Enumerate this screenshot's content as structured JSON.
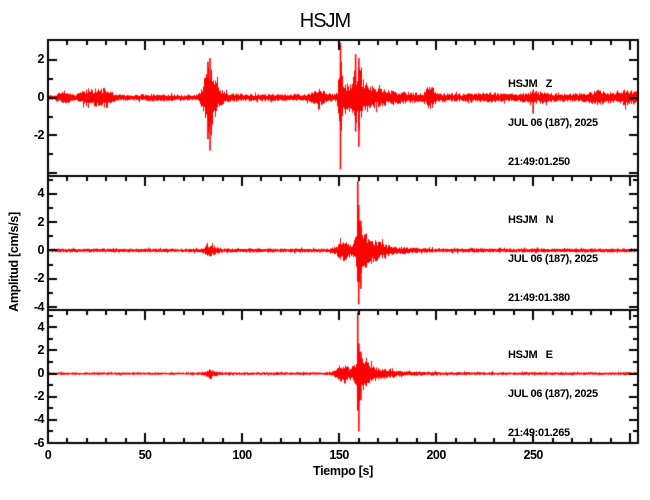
{
  "title": "HSJM",
  "axes": {
    "x_label": "Tiempo [s]",
    "y_label": "Amplitud [cm/s/s]"
  },
  "panels": [
    {
      "channel": "Z",
      "station_line": "HSJM   Z",
      "date_line": "JUL 06 (187), 2025",
      "time_line": "21:49:01.250"
    },
    {
      "channel": "N",
      "station_line": "HSJM   N",
      "date_line": "JUL 06 (187), 2025",
      "time_line": "21:49:01.380"
    },
    {
      "channel": "E",
      "station_line": "HSJM   E",
      "date_line": "JUL 06 (187), 2025",
      "time_line": "21:49:01.265"
    }
  ],
  "colors": {
    "trace": "#ff0000",
    "axis": "#000000",
    "background": "#ffffff",
    "text": "#000000"
  },
  "chart_data": {
    "type": "line",
    "title": "HSJM",
    "xlabel": "Tiempo [s]",
    "ylabel": "Amplitud [cm/s/s]",
    "units": "cm/s/s",
    "x_axis": {
      "min": 0,
      "max": 304,
      "minor_step": 10,
      "major_step": 50,
      "labeled_ticks": [
        0,
        50,
        100,
        150,
        200,
        250
      ]
    },
    "series": [
      {
        "name": "HSJM Z",
        "start_time": "21:49:01.250",
        "ylim": [
          -4.15,
          3.05
        ],
        "y_labeled_ticks": [
          2,
          0,
          -2
        ],
        "seed": 11,
        "envelope": [
          [
            0,
            0.13
          ],
          [
            4,
            0.14
          ],
          [
            5,
            0.25
          ],
          [
            8,
            0.35
          ],
          [
            11,
            0.25
          ],
          [
            14,
            0.15
          ],
          [
            17,
            0.35
          ],
          [
            20,
            0.5
          ],
          [
            22,
            0.42
          ],
          [
            25,
            0.55
          ],
          [
            27,
            0.45
          ],
          [
            30,
            0.55
          ],
          [
            33,
            0.3
          ],
          [
            35,
            0.18
          ],
          [
            45,
            0.16
          ],
          [
            55,
            0.2
          ],
          [
            57,
            0.22
          ],
          [
            62,
            0.18
          ],
          [
            70,
            0.15
          ],
          [
            76,
            0.16
          ],
          [
            78,
            0.3
          ],
          [
            80,
            0.9
          ],
          [
            82,
            1.9
          ],
          [
            84,
            2.0
          ],
          [
            85,
            1.4
          ],
          [
            86,
            1.0
          ],
          [
            88,
            0.55
          ],
          [
            90,
            0.35
          ],
          [
            93,
            0.22
          ],
          [
            110,
            0.18
          ],
          [
            133,
            0.18
          ],
          [
            136,
            0.28
          ],
          [
            139,
            0.45
          ],
          [
            141,
            0.4
          ],
          [
            144,
            0.25
          ],
          [
            147,
            0.2
          ],
          [
            149,
            0.35
          ],
          [
            150.7,
            2.6
          ],
          [
            151.5,
            1.1
          ],
          [
            153,
            0.85
          ],
          [
            155,
            0.75
          ],
          [
            157,
            1.0
          ],
          [
            158,
            1.7
          ],
          [
            159,
            1.2
          ],
          [
            160,
            1.9
          ],
          [
            161,
            1.4
          ],
          [
            162,
            1.0
          ],
          [
            164,
            0.8
          ],
          [
            168,
            0.55
          ],
          [
            172,
            0.45
          ],
          [
            178,
            0.35
          ],
          [
            186,
            0.28
          ],
          [
            193,
            0.25
          ],
          [
            195,
            0.5
          ],
          [
            197,
            0.7
          ],
          [
            199,
            0.4
          ],
          [
            201,
            0.25
          ],
          [
            212,
            0.2
          ],
          [
            225,
            0.28
          ],
          [
            228,
            0.32
          ],
          [
            232,
            0.22
          ],
          [
            242,
            0.2
          ],
          [
            248,
            0.3
          ],
          [
            250,
            0.45
          ],
          [
            252,
            0.3
          ],
          [
            255,
            0.35
          ],
          [
            258,
            0.25
          ],
          [
            268,
            0.2
          ],
          [
            278,
            0.28
          ],
          [
            284,
            0.42
          ],
          [
            288,
            0.3
          ],
          [
            293,
            0.28
          ],
          [
            297,
            0.42
          ],
          [
            300,
            0.38
          ],
          [
            304,
            0.35
          ]
        ],
        "spikes": [
          [
            82.4,
            1.9,
            -2.2
          ],
          [
            83.5,
            2.1,
            -2.8
          ],
          [
            150.7,
            2.9,
            -3.8
          ],
          [
            158.5,
            2.3,
            -1.8
          ],
          [
            160.2,
            2.1,
            -2.6
          ],
          [
            250,
            0.4,
            -0.85
          ]
        ]
      },
      {
        "name": "HSJM N",
        "start_time": "21:49:01.380",
        "ylim": [
          -4.2,
          5.25
        ],
        "y_labeled_ticks": [
          4,
          2,
          0,
          -2,
          -4
        ],
        "seed": 23,
        "envelope": [
          [
            0,
            0.13
          ],
          [
            40,
            0.13
          ],
          [
            70,
            0.12
          ],
          [
            79,
            0.15
          ],
          [
            81,
            0.3
          ],
          [
            83,
            0.45
          ],
          [
            85,
            0.35
          ],
          [
            88,
            0.2
          ],
          [
            90,
            0.14
          ],
          [
            120,
            0.14
          ],
          [
            145,
            0.14
          ],
          [
            148,
            0.3
          ],
          [
            150,
            0.6
          ],
          [
            152,
            0.75
          ],
          [
            154,
            0.6
          ],
          [
            156,
            0.5
          ],
          [
            158,
            0.85
          ],
          [
            159,
            1.6
          ],
          [
            159.6,
            3.8
          ],
          [
            160.4,
            2.2
          ],
          [
            161,
            1.8
          ],
          [
            162,
            1.5
          ],
          [
            164,
            1.15
          ],
          [
            166,
            0.95
          ],
          [
            168,
            0.8
          ],
          [
            171,
            0.6
          ],
          [
            174,
            0.45
          ],
          [
            177,
            0.35
          ],
          [
            181,
            0.27
          ],
          [
            186,
            0.21
          ],
          [
            192,
            0.17
          ],
          [
            205,
            0.15
          ],
          [
            230,
            0.14
          ],
          [
            260,
            0.14
          ],
          [
            290,
            0.13
          ],
          [
            304,
            0.13
          ]
        ],
        "spikes": [
          [
            159.6,
            4.9,
            -2.2
          ],
          [
            160.1,
            3.2,
            -3.8
          ],
          [
            161.2,
            2.1,
            -2.7
          ]
        ]
      },
      {
        "name": "HSJM E",
        "start_time": "21:49:01.265",
        "ylim": [
          -6.0,
          5.5
        ],
        "y_labeled_ticks": [
          4,
          2,
          0,
          -2,
          -4,
          -6
        ],
        "seed": 37,
        "envelope": [
          [
            0,
            0.11
          ],
          [
            40,
            0.11
          ],
          [
            70,
            0.1
          ],
          [
            79,
            0.13
          ],
          [
            81,
            0.25
          ],
          [
            83,
            0.38
          ],
          [
            85,
            0.3
          ],
          [
            88,
            0.16
          ],
          [
            90,
            0.12
          ],
          [
            120,
            0.12
          ],
          [
            143,
            0.12
          ],
          [
            146,
            0.16
          ],
          [
            148,
            0.35
          ],
          [
            150,
            0.7
          ],
          [
            152,
            0.85
          ],
          [
            154,
            0.7
          ],
          [
            156,
            0.6
          ],
          [
            158,
            0.95
          ],
          [
            159,
            1.7
          ],
          [
            159.6,
            4.2
          ],
          [
            160.4,
            2.0
          ],
          [
            161,
            1.7
          ],
          [
            162.5,
            1.3
          ],
          [
            164,
            1.05
          ],
          [
            166,
            0.85
          ],
          [
            169,
            0.62
          ],
          [
            172,
            0.47
          ],
          [
            176,
            0.36
          ],
          [
            180,
            0.28
          ],
          [
            186,
            0.2
          ],
          [
            195,
            0.16
          ],
          [
            212,
            0.14
          ],
          [
            235,
            0.13
          ],
          [
            258,
            0.13
          ],
          [
            275,
            0.12
          ],
          [
            292,
            0.13
          ],
          [
            304,
            0.13
          ]
        ],
        "spikes": [
          [
            159.6,
            5.3,
            -3.2
          ],
          [
            160.2,
            2.6,
            -5.0
          ],
          [
            161.2,
            1.9,
            -2.3
          ]
        ]
      }
    ]
  }
}
